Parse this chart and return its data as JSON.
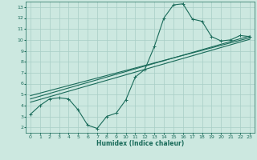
{
  "xlabel": "Humidex (Indice chaleur)",
  "xlim": [
    -0.5,
    23.5
  ],
  "ylim": [
    1.5,
    13.5
  ],
  "xticks": [
    0,
    1,
    2,
    3,
    4,
    5,
    6,
    7,
    8,
    9,
    10,
    11,
    12,
    13,
    14,
    15,
    16,
    17,
    18,
    19,
    20,
    21,
    22,
    23
  ],
  "yticks": [
    2,
    3,
    4,
    5,
    6,
    7,
    8,
    9,
    10,
    11,
    12,
    13
  ],
  "bg_color": "#cce8e0",
  "grid_color": "#a8cec6",
  "line_color": "#1a6b5a",
  "line1_x": [
    0,
    1,
    2,
    3,
    4,
    5,
    6,
    7,
    8,
    9,
    10,
    11,
    12,
    13,
    14,
    15,
    16,
    17,
    18,
    19,
    20,
    21,
    22,
    23
  ],
  "line1_y": [
    3.2,
    4.0,
    4.6,
    4.7,
    4.6,
    3.6,
    2.2,
    1.9,
    3.0,
    3.3,
    4.5,
    6.6,
    7.3,
    9.4,
    12.0,
    13.2,
    13.3,
    11.9,
    11.7,
    10.3,
    9.9,
    10.0,
    10.4,
    10.3
  ],
  "line2_x": [
    0,
    1,
    2,
    3,
    4,
    5,
    6,
    7,
    8,
    9,
    10,
    11,
    12,
    13,
    14,
    15,
    16,
    17,
    18,
    19,
    20,
    21,
    22,
    23
  ],
  "line2_y": [
    4.3,
    4.55,
    4.8,
    5.05,
    5.3,
    5.55,
    5.8,
    6.05,
    6.3,
    6.55,
    6.8,
    7.05,
    7.3,
    7.55,
    7.8,
    8.05,
    8.3,
    8.55,
    8.8,
    9.05,
    9.3,
    9.55,
    9.8,
    10.05
  ],
  "line3_x": [
    0,
    1,
    2,
    3,
    4,
    5,
    6,
    7,
    8,
    9,
    10,
    11,
    12,
    13,
    14,
    15,
    16,
    17,
    18,
    19,
    20,
    21,
    22,
    23
  ],
  "line3_y": [
    4.6,
    4.85,
    5.1,
    5.35,
    5.6,
    5.85,
    6.1,
    6.35,
    6.6,
    6.85,
    7.1,
    7.35,
    7.6,
    7.85,
    8.1,
    8.35,
    8.6,
    8.85,
    9.1,
    9.35,
    9.6,
    9.85,
    10.1,
    10.35
  ],
  "line4_x": [
    0,
    1,
    2,
    3,
    4,
    5,
    6,
    7,
    8,
    9,
    10,
    11,
    12,
    13,
    14,
    15,
    16,
    17,
    18,
    19,
    20,
    21,
    22,
    23
  ],
  "line4_y": [
    4.9,
    5.13,
    5.36,
    5.59,
    5.82,
    6.05,
    6.28,
    6.51,
    6.74,
    6.97,
    7.2,
    7.43,
    7.66,
    7.89,
    8.12,
    8.35,
    8.58,
    8.81,
    9.04,
    9.27,
    9.5,
    9.73,
    9.96,
    10.19
  ]
}
